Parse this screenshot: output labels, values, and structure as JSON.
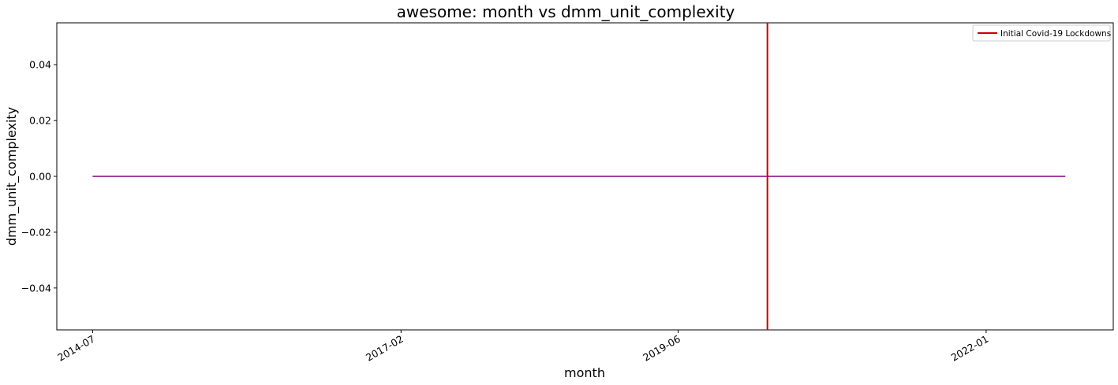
{
  "chart_data": {
    "type": "line",
    "title": "awesome: month vs dmm_unit_complexity",
    "xlabel": "month",
    "ylabel": "dmm_unit_complexity",
    "x_tick_labels": [
      "2014-07",
      "2017-02",
      "2019-06",
      "2022-01"
    ],
    "y_tick_labels": [
      "0.04",
      "0.02",
      "0.00",
      "−0.02",
      "−0.04"
    ],
    "y_tick_values": [
      0.04,
      0.02,
      0.0,
      -0.02,
      -0.04
    ],
    "ylim": [
      -0.055,
      0.055
    ],
    "xlim": [
      "2014-03-13",
      "2023-01-26"
    ],
    "series": [
      {
        "color": "#800080",
        "x": [
          "2014-07-01",
          "2022-09-01"
        ],
        "y": [
          0,
          0
        ]
      }
    ],
    "vlines": [
      {
        "name": "Initial Covid-19 Lockdowns",
        "x": "2020-03-01",
        "color": "#cc0000"
      }
    ],
    "legend": {
      "position": "top-right",
      "entries": [
        {
          "label": "Initial Covid-19 Lockdowns",
          "color": "#cc0000"
        }
      ]
    },
    "grid": false
  }
}
